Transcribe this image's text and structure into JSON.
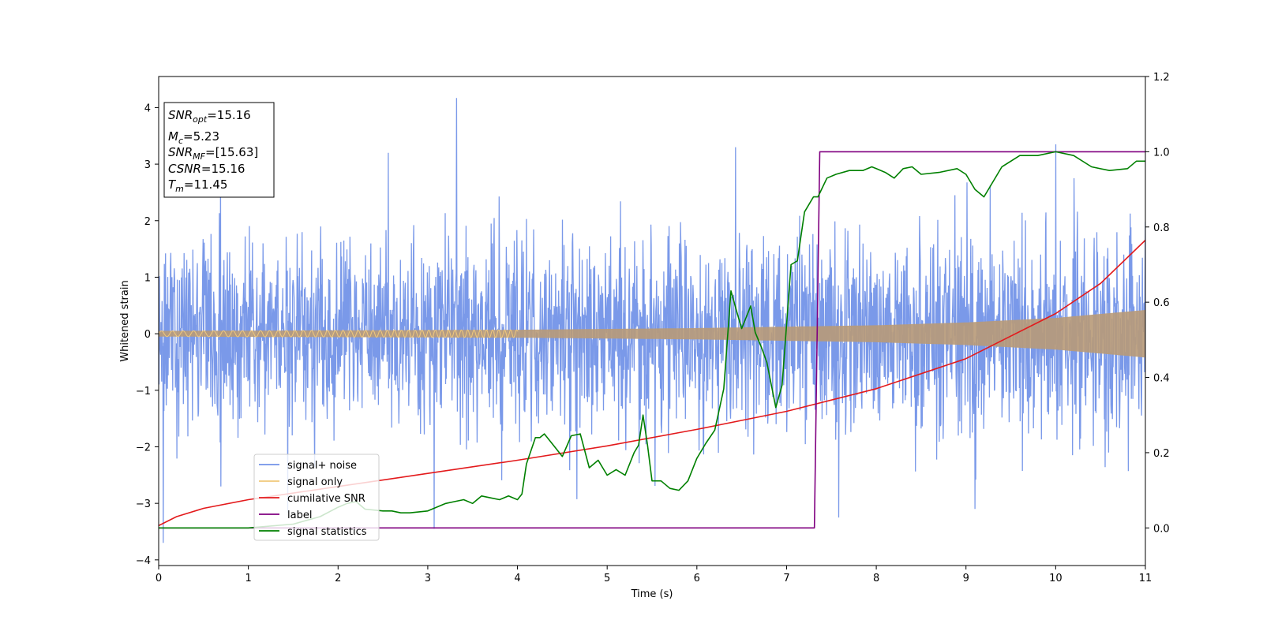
{
  "chart_data": {
    "type": "line",
    "xlabel": "Time (s)",
    "ylabel": "Whitened strain",
    "xlim": [
      0,
      11
    ],
    "ylim": [
      -4.1,
      4.55
    ],
    "y2lim": [
      -0.1,
      1.2
    ],
    "x_ticks": [
      0,
      1,
      2,
      3,
      4,
      5,
      6,
      7,
      8,
      9,
      10,
      11
    ],
    "y_ticks": [
      -4,
      -3,
      -2,
      -1,
      0,
      1,
      2,
      3,
      4
    ],
    "y2_ticks": [
      0.0,
      0.2,
      0.4,
      0.6,
      0.8,
      1.0,
      1.2
    ],
    "legend_position": "lower-left",
    "info_box": {
      "snr_opt": {
        "name": "SNR",
        "sub": "opt",
        "value": "=15.16"
      },
      "mc": {
        "name": "M",
        "sub": "c",
        "value": "=5.23"
      },
      "snr_mf": {
        "name": "SNR",
        "sub": "MF",
        "value": "=[15.63]"
      },
      "csnr": {
        "name": "CSNR",
        "sub": "",
        "value": "=15.16"
      },
      "tm": {
        "name": "T",
        "sub": "m",
        "value": "=11.45"
      }
    },
    "series": [
      {
        "name": "signal+ noise",
        "axis": "left",
        "color": "#7393e8",
        "kind": "noise",
        "noise_std": 0.85,
        "clip": [
          -3.7,
          4.17
        ],
        "samples": 2600,
        "spikes": [
          [
            3.32,
            4.17
          ],
          [
            0.05,
            -3.7
          ],
          [
            10.0,
            3.35
          ],
          [
            3.07,
            -3.45
          ],
          [
            6.43,
            3.3
          ],
          [
            7.58,
            -3.25
          ],
          [
            9.1,
            -3.1
          ],
          [
            2.56,
            3.2
          ]
        ]
      },
      {
        "name": "signal only",
        "axis": "left",
        "color": "#f0c87a",
        "fill_color": "#b89a78",
        "kind": "chirp",
        "amplitude_envelope": [
          [
            0,
            0.05
          ],
          [
            2,
            0.06
          ],
          [
            4,
            0.07
          ],
          [
            6,
            0.1
          ],
          [
            8,
            0.15
          ],
          [
            9,
            0.2
          ],
          [
            10,
            0.28
          ],
          [
            11,
            0.42
          ]
        ]
      },
      {
        "name": "cumilative SNR",
        "axis": "right",
        "color": "#e31a1c",
        "x": [
          0,
          0.2,
          0.5,
          1,
          2,
          3,
          4,
          5,
          6,
          7,
          8,
          9,
          10,
          10.5,
          11
        ],
        "y": [
          0.006,
          0.03,
          0.052,
          0.075,
          0.11,
          0.145,
          0.18,
          0.218,
          0.262,
          0.31,
          0.37,
          0.45,
          0.57,
          0.65,
          0.765
        ]
      },
      {
        "name": "label",
        "axis": "right",
        "color": "#800080",
        "x": [
          0,
          7.31,
          7.37,
          11
        ],
        "y": [
          0,
          0,
          1.0,
          1.0
        ]
      },
      {
        "name": "signal statistics",
        "axis": "right",
        "color": "#008000",
        "x": [
          0,
          1.0,
          1.5,
          1.8,
          2.0,
          2.1,
          2.2,
          2.3,
          2.5,
          2.6,
          2.7,
          2.8,
          3.0,
          3.2,
          3.3,
          3.4,
          3.5,
          3.6,
          3.7,
          3.8,
          3.9,
          4.0,
          4.05,
          4.1,
          4.2,
          4.25,
          4.3,
          4.4,
          4.5,
          4.6,
          4.7,
          4.8,
          4.9,
          5.0,
          5.1,
          5.2,
          5.3,
          5.35,
          5.4,
          5.45,
          5.5,
          5.6,
          5.7,
          5.8,
          5.9,
          6.0,
          6.1,
          6.2,
          6.3,
          6.38,
          6.45,
          6.5,
          6.6,
          6.65,
          6.72,
          6.78,
          6.88,
          6.95,
          7.05,
          7.12,
          7.2,
          7.3,
          7.35,
          7.45,
          7.55,
          7.7,
          7.85,
          7.95,
          8.0,
          8.1,
          8.2,
          8.3,
          8.4,
          8.5,
          8.7,
          8.9,
          9.0,
          9.1,
          9.2,
          9.4,
          9.6,
          9.8,
          10.0,
          10.2,
          10.4,
          10.6,
          10.8,
          10.9,
          11.0
        ],
        "y": [
          0.0,
          0.0,
          0.01,
          0.03,
          0.055,
          0.065,
          0.07,
          0.05,
          0.045,
          0.045,
          0.04,
          0.04,
          0.045,
          0.065,
          0.07,
          0.075,
          0.065,
          0.085,
          0.08,
          0.075,
          0.085,
          0.075,
          0.09,
          0.17,
          0.24,
          0.24,
          0.25,
          0.22,
          0.19,
          0.245,
          0.25,
          0.16,
          0.18,
          0.14,
          0.155,
          0.14,
          0.2,
          0.22,
          0.3,
          0.22,
          0.125,
          0.125,
          0.105,
          0.1,
          0.125,
          0.185,
          0.225,
          0.26,
          0.37,
          0.63,
          0.57,
          0.53,
          0.59,
          0.52,
          0.48,
          0.44,
          0.32,
          0.38,
          0.7,
          0.71,
          0.84,
          0.88,
          0.88,
          0.93,
          0.94,
          0.95,
          0.95,
          0.96,
          0.955,
          0.945,
          0.93,
          0.955,
          0.96,
          0.94,
          0.945,
          0.955,
          0.94,
          0.9,
          0.88,
          0.96,
          0.99,
          0.99,
          1.0,
          0.99,
          0.96,
          0.95,
          0.955,
          0.975,
          0.975
        ]
      }
    ]
  }
}
